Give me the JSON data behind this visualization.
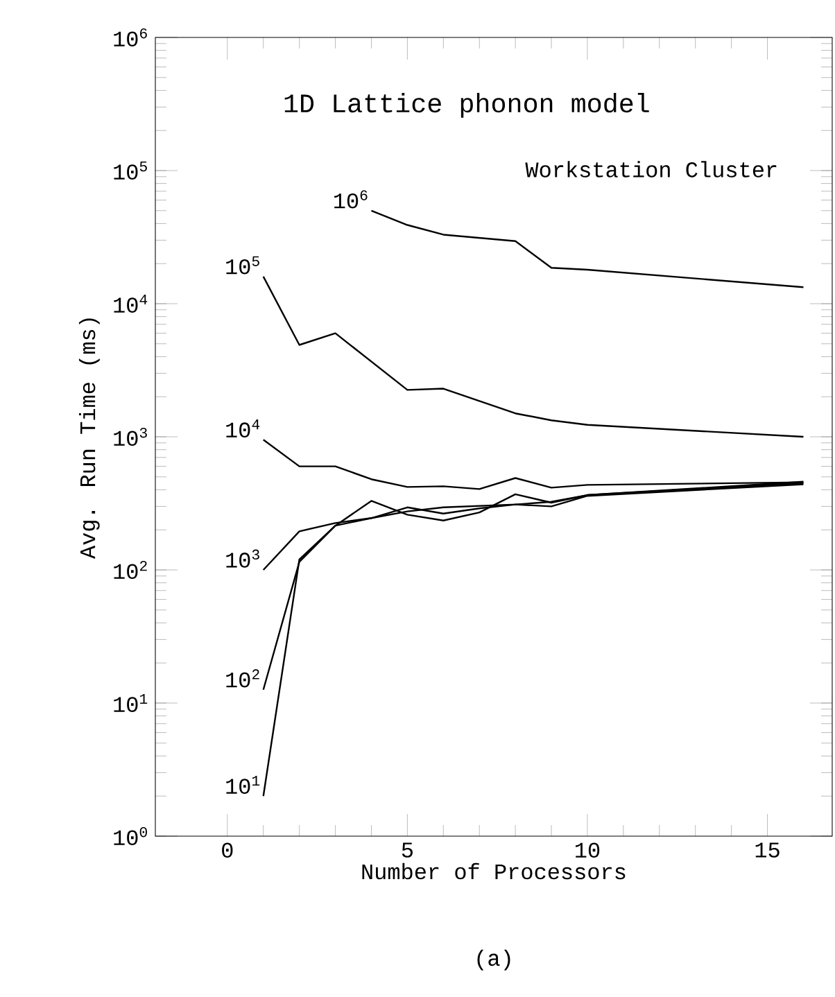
{
  "chart_data": {
    "type": "line",
    "title": "1D Lattice phonon model",
    "subtitle": "Workstation Cluster",
    "xlabel": "Number of Processors",
    "ylabel": "Avg. Run Time (ms)",
    "annotations": [
      "(a)"
    ],
    "log": "y",
    "xlim": [
      -2,
      16.8
    ],
    "ylim": [
      1,
      1000000
    ],
    "xticks": [
      0,
      5,
      10,
      15
    ],
    "yticks": [
      {
        "value": 1,
        "label": "10$^{0}$"
      },
      {
        "value": 10,
        "label": "10$^{1}$"
      },
      {
        "value": 100,
        "label": "10$^{2}$"
      },
      {
        "value": 1000,
        "label": "10$^{3}$"
      },
      {
        "value": 10000,
        "label": "10$^{4}$"
      },
      {
        "value": 100000,
        "label": "10$^{5}$"
      },
      {
        "value": 1000000,
        "label": "10$^{6}$"
      }
    ],
    "series": [
      {
        "name": "10$^{6}$",
        "color": "#000000",
        "x": [
          4,
          5,
          6,
          8,
          9,
          10,
          16
        ],
        "values": [
          50000,
          39000,
          33000,
          29500,
          18600,
          18000,
          13300
        ]
      },
      {
        "name": "10$^{5}$",
        "color": "#000000",
        "x": [
          1,
          2,
          3,
          5,
          6,
          8,
          9,
          10,
          16
        ],
        "values": [
          16000,
          4900,
          6000,
          2250,
          2300,
          1500,
          1330,
          1230,
          1000
        ]
      },
      {
        "name": "10$^{4}$",
        "color": "#000000",
        "x": [
          1,
          2,
          3,
          4,
          5,
          6,
          7,
          8,
          9,
          10,
          16
        ],
        "values": [
          950,
          600,
          600,
          480,
          420,
          425,
          405,
          490,
          415,
          435,
          455
        ]
      },
      {
        "name": "10$^{3}$",
        "color": "#000000",
        "x": [
          1,
          2,
          3,
          4,
          5,
          6,
          8,
          9,
          10,
          16
        ],
        "values": [
          100,
          195,
          225,
          245,
          275,
          295,
          310,
          325,
          365,
          460
        ]
      },
      {
        "name": "10$^{2}$",
        "color": "#000000",
        "x": [
          1,
          2,
          3,
          4,
          5,
          6,
          7,
          8,
          9,
          10,
          16
        ],
        "values": [
          12.6,
          115,
          215,
          330,
          260,
          235,
          270,
          370,
          320,
          365,
          450
        ]
      },
      {
        "name": "10$^{1}$",
        "color": "#000000",
        "x": [
          1,
          2,
          3,
          4,
          5,
          6,
          7,
          8,
          9,
          10,
          16
        ],
        "values": [
          2,
          120,
          215,
          245,
          295,
          265,
          290,
          310,
          300,
          360,
          440
        ]
      }
    ]
  }
}
